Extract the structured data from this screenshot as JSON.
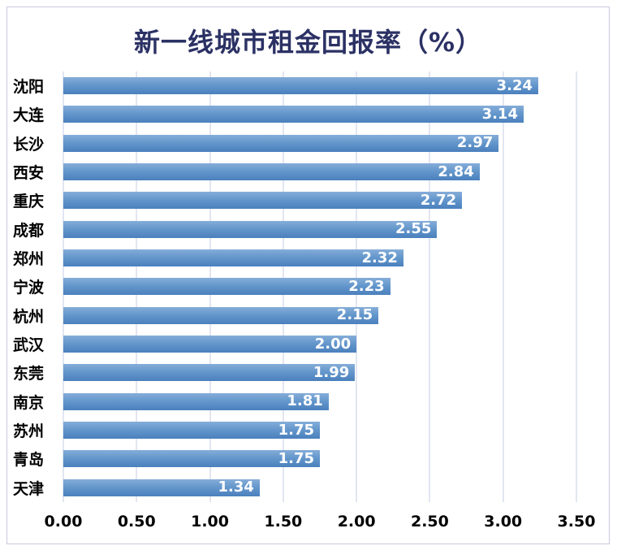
{
  "chart_data": {
    "type": "bar",
    "orientation": "horizontal",
    "title": "新一线城市租金回报率（%）",
    "categories": [
      "沈阳",
      "大连",
      "长沙",
      "西安",
      "重庆",
      "成都",
      "郑州",
      "宁波",
      "杭州",
      "武汉",
      "东莞",
      "南京",
      "苏州",
      "青岛",
      "天津"
    ],
    "values": [
      3.24,
      3.14,
      2.97,
      2.84,
      2.72,
      2.55,
      2.32,
      2.23,
      2.15,
      2.0,
      1.99,
      1.81,
      1.75,
      1.75,
      1.34
    ],
    "value_labels": [
      "3.24",
      "3.14",
      "2.97",
      "2.84",
      "2.72",
      "2.55",
      "2.32",
      "2.23",
      "2.15",
      "2.00",
      "1.99",
      "1.81",
      "1.75",
      "1.75",
      "1.34"
    ],
    "x_ticks": [
      "0.00",
      "0.50",
      "1.00",
      "1.50",
      "2.00",
      "2.50",
      "3.00",
      "3.50"
    ],
    "xlim": [
      0,
      3.5
    ],
    "grid": true,
    "legend": "none",
    "colors": {
      "bar_top": "#85add9",
      "bar_mid": "#6396cb",
      "bar_bottom": "#4a80bd",
      "gridline": "#c6cce3",
      "title": "#2b3164",
      "axis_text": "#000000",
      "value_text": "#ffffff",
      "frame_border": "#ccc9df"
    }
  }
}
